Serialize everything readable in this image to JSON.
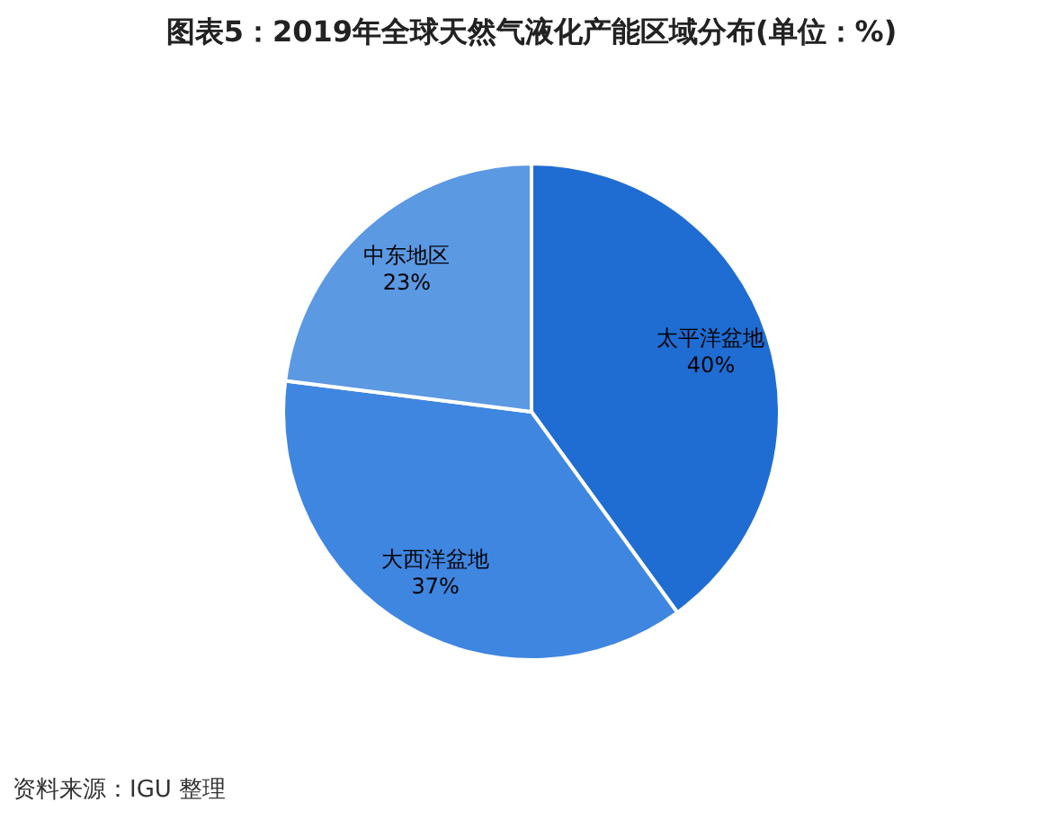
{
  "chart_data": {
    "type": "pie",
    "title": "图表5：2019年全球天然气液化产能区域分布(单位：%)",
    "categories": [
      "太平洋盆地",
      "大西洋盆地",
      "中东地区"
    ],
    "values": [
      40,
      37,
      23
    ],
    "value_labels": [
      "40%",
      "37%",
      "23%"
    ],
    "colors": [
      "#1f6dd2",
      "#3f86e0",
      "#5b99e3"
    ],
    "legend": false,
    "annotations": [
      "资料来源：IGU 整理"
    ]
  }
}
